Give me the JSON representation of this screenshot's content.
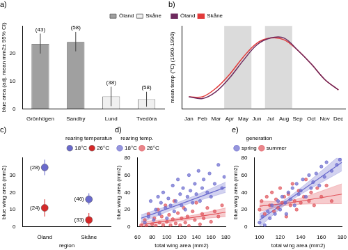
{
  "chart_data": [
    {
      "type": "bar",
      "title": "a)",
      "categories": [
        "Grönhögen",
        "Sandby",
        "Lund",
        "Tvedöra"
      ],
      "ylabel": "blue area (adj. mean mm2± 95% CI)",
      "ylim": [
        0,
        30
      ],
      "yticks": [
        0,
        10,
        20
      ],
      "grid": false,
      "legend": "top-right",
      "series": [
        {
          "name": "Öland",
          "color": "#a0a0a0",
          "values": [
            23.5,
            24.2,
            null,
            null
          ],
          "ci_lower": [
            20,
            20.8,
            null,
            null
          ],
          "ci_upper": [
            27.2,
            27.8,
            null,
            null
          ],
          "n_labels": [
            "(43)",
            "(58)",
            null,
            null
          ]
        },
        {
          "name": "Skåne",
          "color": "#f0f0f0",
          "values": [
            null,
            null,
            4.5,
            3.5
          ],
          "ci_lower": [
            null,
            null,
            1,
            0.8
          ],
          "ci_upper": [
            null,
            null,
            8,
            6.2
          ],
          "n_labels": [
            null,
            null,
            "(38)",
            "(58)"
          ]
        }
      ]
    },
    {
      "type": "line",
      "title": "b)",
      "categories": [
        "Jan",
        "Feb",
        "Mar",
        "Apr",
        "May",
        "Jun",
        "Jul",
        "Aug",
        "Sep",
        "Oct",
        "Nov",
        "Dec"
      ],
      "ylabel": "mean temp (°C) (1960-1990)",
      "ylim": [
        -4,
        20
      ],
      "tick_labels": "x",
      "grid": false,
      "legend": "top-left",
      "shaded": [
        [
          "Apr",
          "May"
        ],
        [
          "Jul",
          "Aug"
        ]
      ],
      "series": [
        {
          "name": "Öland",
          "color": "#6e2a5e",
          "values": [
            -0.5,
            -1,
            1,
            5,
            10,
            14.5,
            16.5,
            16.5,
            13,
            9,
            4.5,
            1.5
          ]
        },
        {
          "name": "Skåne",
          "color": "#e23b3b",
          "values": [
            -0.5,
            -0.5,
            2,
            6,
            11,
            15,
            16.5,
            16,
            13,
            9,
            4.5,
            1.5
          ]
        }
      ]
    },
    {
      "type": "dot",
      "title": "c)",
      "categories": [
        "Öland",
        "Skåne"
      ],
      "xlabel": "region",
      "ylabel": "blue wing area (mm2)",
      "ylim": [
        0,
        40
      ],
      "yticks": [
        0,
        10,
        20,
        30
      ],
      "grid": false,
      "legend": "top-right",
      "legend_title": "rearing temperature",
      "series": [
        {
          "name": "18°C",
          "color": "#6a6acd",
          "values": [
            34.5,
            16
          ],
          "ci_lower": [
            30,
            13
          ],
          "ci_upper": [
            39,
            19.5
          ],
          "n_labels": [
            "(28)",
            "(46)"
          ]
        },
        {
          "name": "26°C",
          "color": "#d62828",
          "values": [
            11,
            4
          ],
          "ci_lower": [
            6,
            0.5
          ],
          "ci_upper": [
            16,
            8
          ],
          "n_labels": [
            "(24)",
            "(33)"
          ]
        }
      ]
    },
    {
      "type": "scatter",
      "title": "d)",
      "xlabel": "total wing area (mm2)",
      "ylabel": "blue wing area (mm2)",
      "xlim": [
        60,
        180
      ],
      "xticks": [
        60,
        80,
        100,
        120,
        140,
        160,
        180
      ],
      "ylim": [
        0,
        80
      ],
      "yticks": [
        0,
        20,
        40,
        60,
        80
      ],
      "grid": false,
      "legend": "top-left",
      "legend_title": "rearing temp.",
      "series": [
        {
          "name": "18°C",
          "color": "#6a6acd",
          "values": [
            [
              70,
              5
            ],
            [
              75,
              12
            ],
            [
              78,
              30
            ],
            [
              82,
              8
            ],
            [
              85,
              20
            ],
            [
              88,
              35
            ],
            [
              90,
              15
            ],
            [
              92,
              28
            ],
            [
              95,
              40
            ],
            [
              98,
              22
            ],
            [
              100,
              10
            ],
            [
              102,
              33
            ],
            [
              105,
              25
            ],
            [
              108,
              48
            ],
            [
              110,
              18
            ],
            [
              112,
              30
            ],
            [
              115,
              55
            ],
            [
              118,
              38
            ],
            [
              120,
              25
            ],
            [
              122,
              45
            ],
            [
              125,
              20
            ],
            [
              128,
              35
            ],
            [
              130,
              60
            ],
            [
              132,
              42
            ],
            [
              135,
              28
            ],
            [
              138,
              50
            ],
            [
              140,
              38
            ],
            [
              143,
              65
            ],
            [
              145,
              30
            ],
            [
              148,
              45
            ],
            [
              150,
              55
            ],
            [
              155,
              40
            ],
            [
              158,
              62
            ],
            [
              160,
              35
            ],
            [
              165,
              50
            ],
            [
              170,
              72
            ],
            [
              175,
              45
            ],
            [
              178,
              58
            ]
          ],
          "fit": {
            "x": [
              65,
              120,
              180
            ],
            "y": [
              10,
              27,
              46
            ],
            "lower": [
              5,
              24,
              40
            ],
            "upper": [
              14,
              30,
              52
            ]
          }
        },
        {
          "name": "26°C",
          "color": "#e0525a",
          "values": [
            [
              65,
              2
            ],
            [
              70,
              8
            ],
            [
              72,
              1
            ],
            [
              75,
              15
            ],
            [
              80,
              3
            ],
            [
              83,
              10
            ],
            [
              85,
              1
            ],
            [
              88,
              20
            ],
            [
              90,
              5
            ],
            [
              93,
              12
            ],
            [
              95,
              2
            ],
            [
              98,
              25
            ],
            [
              100,
              6
            ],
            [
              103,
              14
            ],
            [
              105,
              2
            ],
            [
              108,
              9
            ],
            [
              110,
              30
            ],
            [
              112,
              4
            ],
            [
              115,
              16
            ],
            [
              118,
              2
            ],
            [
              120,
              10
            ],
            [
              123,
              22
            ],
            [
              125,
              5
            ],
            [
              128,
              12
            ],
            [
              130,
              1
            ],
            [
              135,
              18
            ],
            [
              138,
              8
            ],
            [
              140,
              28
            ],
            [
              145,
              3
            ],
            [
              148,
              15
            ],
            [
              150,
              10
            ],
            [
              155,
              22
            ],
            [
              160,
              6
            ],
            [
              165,
              18
            ],
            [
              170,
              12
            ],
            [
              175,
              25
            ]
          ],
          "fit": {
            "x": [
              65,
              120,
              180
            ],
            "y": [
              3,
              9,
              17
            ],
            "lower": [
              0,
              7,
              12
            ],
            "upper": [
              6,
              11,
              22
            ]
          }
        }
      ]
    },
    {
      "type": "scatter",
      "title": "e)",
      "xlabel": "total wing area (mm2)",
      "ylabel": "blue wing area (mm2)",
      "xlim": [
        95,
        180
      ],
      "xticks": [
        100,
        120,
        140,
        160,
        180
      ],
      "ylim": [
        0,
        80
      ],
      "yticks": [
        0,
        20,
        40,
        60,
        80
      ],
      "grid": false,
      "legend": "top-left",
      "legend_title": "generation",
      "series": [
        {
          "name": "spring",
          "color": "#6a6acd",
          "values": [
            [
              100,
              5
            ],
            [
              103,
              12
            ],
            [
              105,
              2
            ],
            [
              108,
              18
            ],
            [
              110,
              10
            ],
            [
              112,
              25
            ],
            [
              115,
              15
            ],
            [
              118,
              30
            ],
            [
              120,
              20
            ],
            [
              122,
              35
            ],
            [
              125,
              28
            ],
            [
              126,
              15
            ],
            [
              128,
              40
            ],
            [
              130,
              32
            ],
            [
              132,
              45
            ],
            [
              134,
              25
            ],
            [
              136,
              50
            ],
            [
              138,
              38
            ],
            [
              140,
              42
            ],
            [
              142,
              55
            ],
            [
              145,
              35
            ],
            [
              148,
              60
            ],
            [
              150,
              45
            ],
            [
              152,
              52
            ],
            [
              155,
              62
            ],
            [
              158,
              48
            ],
            [
              160,
              70
            ],
            [
              163,
              58
            ],
            [
              165,
              75
            ],
            [
              170,
              65
            ],
            [
              175,
              72
            ],
            [
              178,
              78
            ]
          ],
          "fit": {
            "x": [
              100,
              130,
              180
            ],
            "y": [
              8,
              33,
              75
            ],
            "lower": [
              0,
              30,
              65
            ],
            "upper": [
              15,
              36,
              85
            ]
          }
        },
        {
          "name": "summer",
          "color": "#e0525a",
          "values": [
            [
              100,
              20
            ],
            [
              102,
              30
            ],
            [
              105,
              15
            ],
            [
              107,
              35
            ],
            [
              110,
              25
            ],
            [
              112,
              40
            ],
            [
              114,
              18
            ],
            [
              116,
              32
            ],
            [
              118,
              22
            ],
            [
              120,
              45
            ],
            [
              122,
              28
            ],
            [
              124,
              35
            ],
            [
              126,
              12
            ],
            [
              128,
              38
            ],
            [
              130,
              25
            ],
            [
              132,
              50
            ],
            [
              134,
              30
            ],
            [
              136,
              20
            ],
            [
              138,
              42
            ],
            [
              140,
              28
            ],
            [
              143,
              35
            ],
            [
              145,
              55
            ],
            [
              148,
              30
            ],
            [
              150,
              40
            ],
            [
              153,
              25
            ],
            [
              156,
              45
            ],
            [
              160,
              35
            ],
            [
              165,
              48
            ],
            [
              170,
              30
            ]
          ],
          "fit": {
            "x": [
              100,
              130,
              180
            ],
            "y": [
              24,
              28,
              38
            ],
            "lower": [
              18,
              25.5,
              27
            ],
            "upper": [
              30,
              30.5,
              50
            ]
          }
        }
      ]
    }
  ]
}
